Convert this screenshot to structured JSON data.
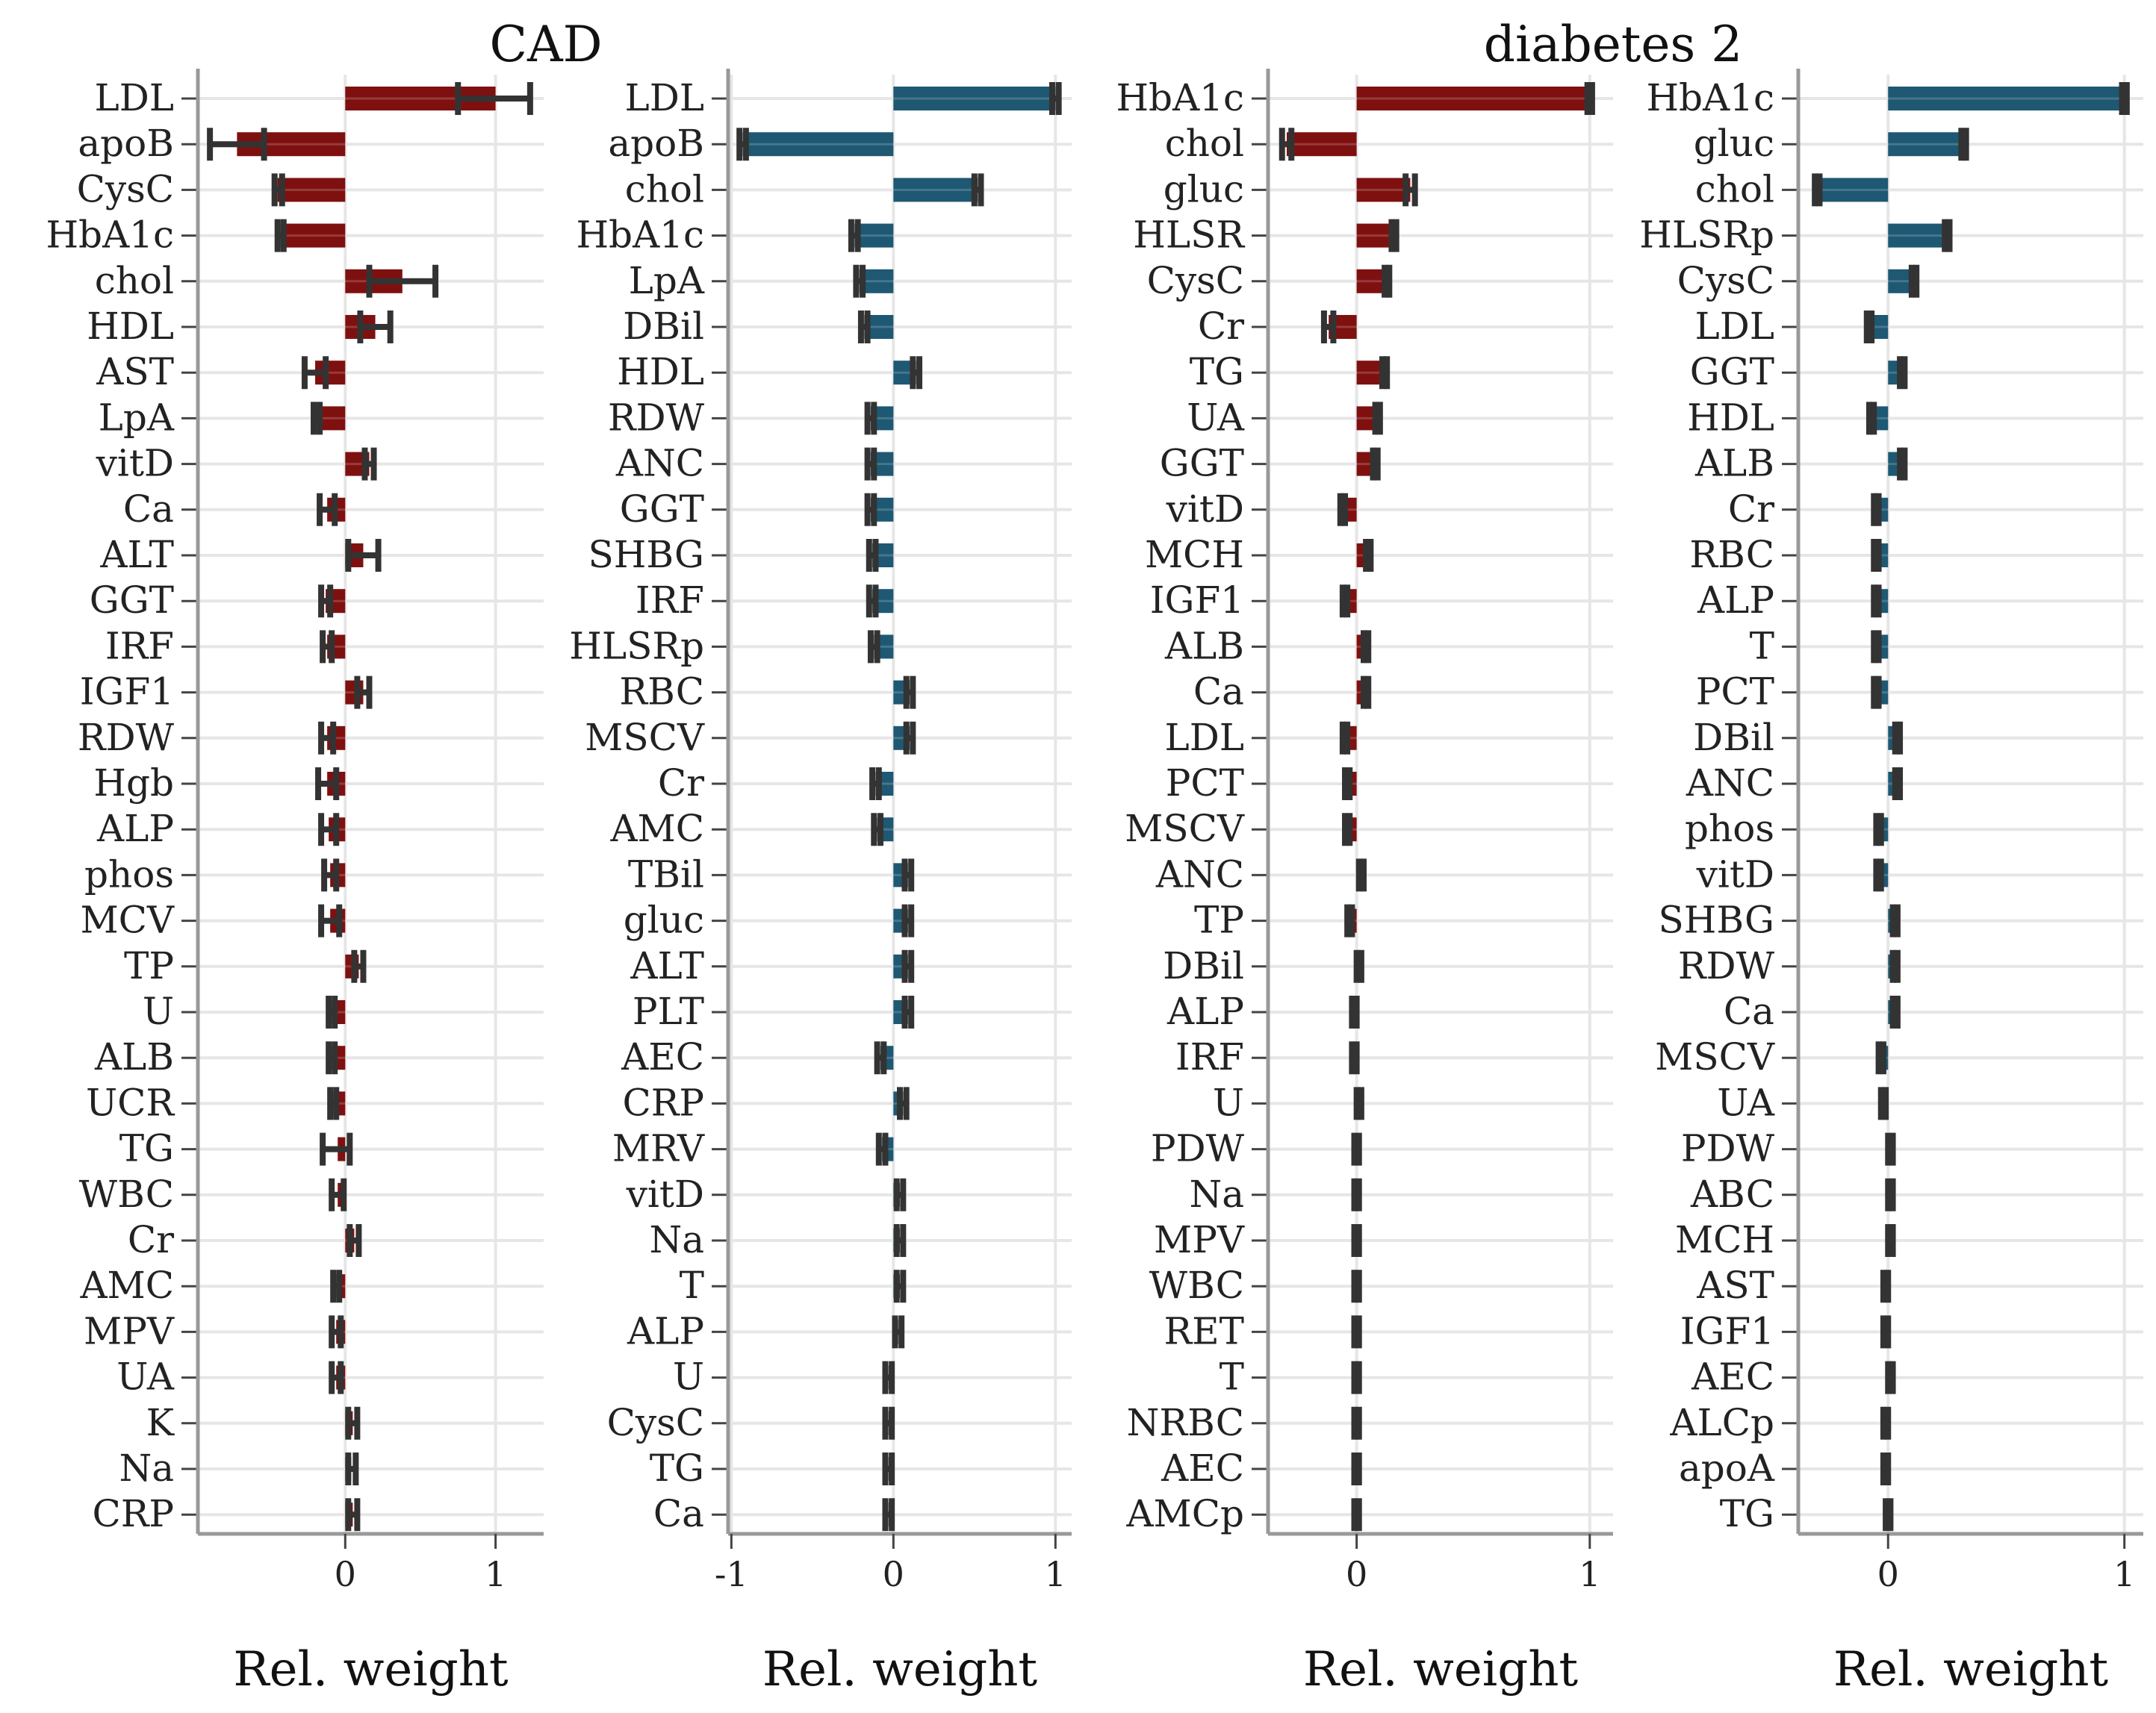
{
  "figure": {
    "titles": {
      "cad": "CAD",
      "diabetes": "diabetes 2"
    },
    "colors": {
      "red": "#7f1010",
      "blue": "#1e5873",
      "error_bar": "#333333",
      "grid": "#e6e6e6",
      "axis": "#999999"
    }
  },
  "chart_data": [
    {
      "type": "bar",
      "orientation": "horizontal",
      "group_title": "CAD",
      "color": "red",
      "error_bars": true,
      "xlabel": "Rel. weight",
      "xticks": [
        "0",
        "1"
      ],
      "xlim": [
        -0.98,
        1.32
      ],
      "categories": [
        "LDL",
        "apoB",
        "CysC",
        "HbA1c",
        "chol",
        "HDL",
        "AST",
        "LpA",
        "vitD",
        "Ca",
        "ALT",
        "GGT",
        "IRF",
        "IGF1",
        "RDW",
        "Hgb",
        "ALP",
        "phos",
        "MCV",
        "TP",
        "U",
        "ALB",
        "UCR",
        "TG",
        "WBC",
        "Cr",
        "AMC",
        "MPV",
        "UA",
        "K",
        "Na",
        "CRP"
      ],
      "values": [
        1.0,
        -0.72,
        -0.45,
        -0.43,
        0.38,
        0.2,
        -0.2,
        -0.19,
        0.16,
        -0.12,
        0.12,
        -0.13,
        -0.12,
        0.12,
        -0.12,
        -0.12,
        -0.11,
        -0.1,
        -0.1,
        0.09,
        -0.09,
        -0.09,
        -0.08,
        -0.05,
        -0.05,
        0.06,
        -0.06,
        -0.06,
        -0.06,
        0.05,
        0.04,
        0.05
      ],
      "err_low": [
        0.75,
        -0.9,
        -0.47,
        -0.45,
        0.16,
        0.1,
        -0.27,
        -0.21,
        0.13,
        -0.17,
        0.02,
        -0.16,
        -0.15,
        0.08,
        -0.16,
        -0.18,
        -0.16,
        -0.14,
        -0.16,
        0.06,
        -0.11,
        -0.11,
        -0.1,
        -0.15,
        -0.09,
        0.03,
        -0.08,
        -0.09,
        -0.09,
        0.02,
        0.02,
        0.02
      ],
      "err_high": [
        1.23,
        -0.54,
        -0.42,
        -0.41,
        0.6,
        0.3,
        -0.13,
        -0.17,
        0.19,
        -0.07,
        0.22,
        -0.1,
        -0.09,
        0.16,
        -0.08,
        -0.06,
        -0.06,
        -0.06,
        -0.04,
        0.12,
        -0.07,
        -0.07,
        -0.06,
        0.03,
        -0.01,
        0.09,
        -0.04,
        -0.03,
        -0.03,
        0.08,
        0.07,
        0.08
      ],
      "title": "",
      "ylabel": ""
    },
    {
      "type": "bar",
      "orientation": "horizontal",
      "color": "blue",
      "error_bars": true,
      "xlabel": "Rel. weight",
      "xticks": [
        "-1",
        "0",
        "1"
      ],
      "xlim": [
        -1.02,
        1.1
      ],
      "categories": [
        "LDL",
        "apoB",
        "chol",
        "HbA1c",
        "LpA",
        "DBil",
        "HDL",
        "RDW",
        "ANC",
        "GGT",
        "SHBG",
        "IRF",
        "HLSRp",
        "RBC",
        "MSCV",
        "Cr",
        "AMC",
        "TBil",
        "gluc",
        "ALT",
        "PLT",
        "AEC",
        "CRP",
        "MRV",
        "vitD",
        "Na",
        "T",
        "ALP",
        "U",
        "CysC",
        "TG",
        "Ca"
      ],
      "values": [
        1.0,
        -0.93,
        0.52,
        -0.24,
        -0.21,
        -0.18,
        0.14,
        -0.14,
        -0.14,
        -0.14,
        -0.13,
        -0.13,
        -0.12,
        0.1,
        0.1,
        -0.11,
        -0.1,
        0.09,
        0.09,
        0.09,
        0.09,
        -0.08,
        0.06,
        -0.07,
        0.04,
        0.04,
        0.04,
        0.03,
        -0.03,
        -0.03,
        -0.03,
        -0.03
      ],
      "err_low": [
        0.98,
        -0.95,
        0.5,
        -0.26,
        -0.23,
        -0.2,
        0.12,
        -0.16,
        -0.16,
        -0.16,
        -0.15,
        -0.15,
        -0.14,
        0.08,
        0.08,
        -0.13,
        -0.12,
        0.07,
        0.07,
        0.07,
        0.07,
        -0.1,
        0.04,
        -0.09,
        0.02,
        0.02,
        0.02,
        0.01,
        -0.05,
        -0.05,
        -0.05,
        -0.05
      ],
      "err_high": [
        1.02,
        -0.91,
        0.54,
        -0.22,
        -0.19,
        -0.16,
        0.16,
        -0.12,
        -0.12,
        -0.12,
        -0.11,
        -0.11,
        -0.1,
        0.12,
        0.12,
        -0.09,
        -0.08,
        0.11,
        0.11,
        0.11,
        0.11,
        -0.06,
        0.08,
        -0.05,
        0.06,
        0.06,
        0.06,
        0.05,
        -0.01,
        -0.01,
        -0.01,
        -0.01
      ],
      "title": "",
      "ylabel": ""
    },
    {
      "type": "bar",
      "orientation": "horizontal",
      "group_title": "diabetes 2",
      "color": "red",
      "error_bars": true,
      "xlabel": "Rel. weight",
      "xticks": [
        "0",
        "1"
      ],
      "xlim": [
        -0.38,
        1.1
      ],
      "categories": [
        "HbA1c",
        "chol",
        "gluc",
        "HLSR",
        "CysC",
        "Cr",
        "TG",
        "UA",
        "GGT",
        "vitD",
        "MCH",
        "IGF1",
        "ALB",
        "Ca",
        "LDL",
        "PCT",
        "MSCV",
        "ANC",
        "TP",
        "DBil",
        "ALP",
        "IRF",
        "U",
        "PDW",
        "Na",
        "MPV",
        "WBC",
        "RET",
        "T",
        "NRBC",
        "AEC",
        "AMCp"
      ],
      "values": [
        1.0,
        -0.3,
        0.23,
        0.16,
        0.13,
        -0.12,
        0.12,
        0.09,
        0.08,
        -0.06,
        0.05,
        -0.05,
        0.04,
        0.04,
        -0.05,
        -0.04,
        -0.04,
        0.02,
        -0.03,
        0.01,
        -0.01,
        -0.01,
        0.01,
        0.0,
        0.0,
        0.0,
        0.0,
        0.0,
        0.0,
        0.0,
        0.0,
        0.0
      ],
      "err_low": [
        0.99,
        -0.32,
        0.21,
        0.15,
        0.12,
        -0.14,
        0.11,
        0.08,
        0.07,
        -0.07,
        0.04,
        -0.06,
        0.03,
        0.03,
        -0.06,
        -0.05,
        -0.05,
        0.01,
        -0.04,
        0.0,
        -0.02,
        -0.02,
        0.0,
        -0.01,
        -0.01,
        -0.01,
        -0.01,
        -0.01,
        -0.01,
        -0.01,
        -0.01,
        -0.01
      ],
      "err_high": [
        1.01,
        -0.28,
        0.25,
        0.17,
        0.14,
        -0.1,
        0.13,
        0.1,
        0.09,
        -0.05,
        0.06,
        -0.04,
        0.05,
        0.05,
        -0.04,
        -0.03,
        -0.03,
        0.03,
        -0.02,
        0.02,
        0.0,
        0.0,
        0.02,
        0.01,
        0.01,
        0.01,
        0.01,
        0.01,
        0.01,
        0.01,
        0.01,
        0.01
      ],
      "title": "",
      "ylabel": ""
    },
    {
      "type": "bar",
      "orientation": "horizontal",
      "color": "blue",
      "error_bars": true,
      "xlabel": "Rel. weight",
      "xticks": [
        "0",
        "1"
      ],
      "xlim": [
        -0.38,
        1.08
      ],
      "categories": [
        "HbA1c",
        "gluc",
        "chol",
        "HLSRp",
        "CysC",
        "LDL",
        "GGT",
        "HDL",
        "ALB",
        "Cr",
        "RBC",
        "ALP",
        "T",
        "PCT",
        "DBil",
        "ANC",
        "phos",
        "vitD",
        "SHBG",
        "RDW",
        "Ca",
        "MSCV",
        "UA",
        "PDW",
        "ABC",
        "MCH",
        "AST",
        "IGF1",
        "AEC",
        "ALCp",
        "apoA",
        "TG"
      ],
      "values": [
        1.0,
        0.32,
        -0.3,
        0.25,
        0.11,
        -0.08,
        0.06,
        -0.07,
        0.06,
        -0.05,
        -0.05,
        -0.05,
        -0.05,
        -0.05,
        0.04,
        0.04,
        -0.04,
        -0.04,
        0.03,
        0.03,
        0.03,
        -0.03,
        -0.02,
        0.01,
        0.01,
        0.01,
        -0.01,
        -0.01,
        0.01,
        -0.01,
        -0.01,
        0.0
      ],
      "err_low": [
        0.99,
        0.31,
        -0.31,
        0.24,
        0.1,
        -0.09,
        0.05,
        -0.08,
        0.05,
        -0.06,
        -0.06,
        -0.06,
        -0.06,
        -0.06,
        0.03,
        0.03,
        -0.05,
        -0.05,
        0.02,
        0.02,
        0.02,
        -0.04,
        -0.03,
        0.0,
        0.0,
        0.0,
        -0.02,
        -0.02,
        0.0,
        -0.02,
        -0.02,
        -0.01
      ],
      "err_high": [
        1.01,
        0.33,
        -0.29,
        0.26,
        0.12,
        -0.07,
        0.07,
        -0.06,
        0.07,
        -0.04,
        -0.04,
        -0.04,
        -0.04,
        -0.04,
        0.05,
        0.05,
        -0.03,
        -0.03,
        0.04,
        0.04,
        0.04,
        -0.02,
        -0.01,
        0.02,
        0.02,
        0.02,
        0.0,
        0.0,
        0.02,
        0.0,
        0.0,
        0.01
      ],
      "title": "",
      "ylabel": ""
    }
  ]
}
